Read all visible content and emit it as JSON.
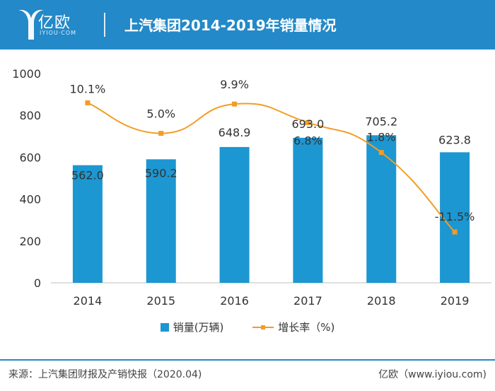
{
  "header": {
    "logo_text": "亿欧",
    "logo_sub": "IYIOU·COM",
    "title": "上汽集团2014-2019年销量情况"
  },
  "chart_data": {
    "type": "bar+line",
    "title": "上汽集团2014-2019年销量情况",
    "categories": [
      "2014",
      "2015",
      "2016",
      "2017",
      "2018",
      "2019"
    ],
    "series": [
      {
        "name": "销量(万辆)",
        "type": "bar",
        "values": [
          562.0,
          590.2,
          648.9,
          693.0,
          705.2,
          623.8
        ],
        "labels": [
          "562.0",
          "590.2",
          "648.9",
          "693.0",
          "705.2",
          "623.8"
        ]
      },
      {
        "name": "增长率（%)",
        "type": "line",
        "values": [
          10.1,
          5.0,
          9.9,
          6.8,
          1.8,
          -11.5
        ],
        "labels": [
          "10.1%",
          "5.0%",
          "9.9%",
          "6.8%",
          "1.8%",
          "-11.5%"
        ]
      }
    ],
    "ylim": [
      0,
      1000
    ],
    "yticks": [
      "0",
      "200",
      "400",
      "600",
      "800",
      "1000"
    ],
    "line_ylim": [
      -20,
      15
    ],
    "colors": {
      "bar": "#1c97d1",
      "line": "#f39c24",
      "header": "#2389c8"
    }
  },
  "footer": {
    "source": "来源：上汽集团财报及产销快报（2020.04)",
    "brand": "亿欧（www.iyiou.com)"
  }
}
